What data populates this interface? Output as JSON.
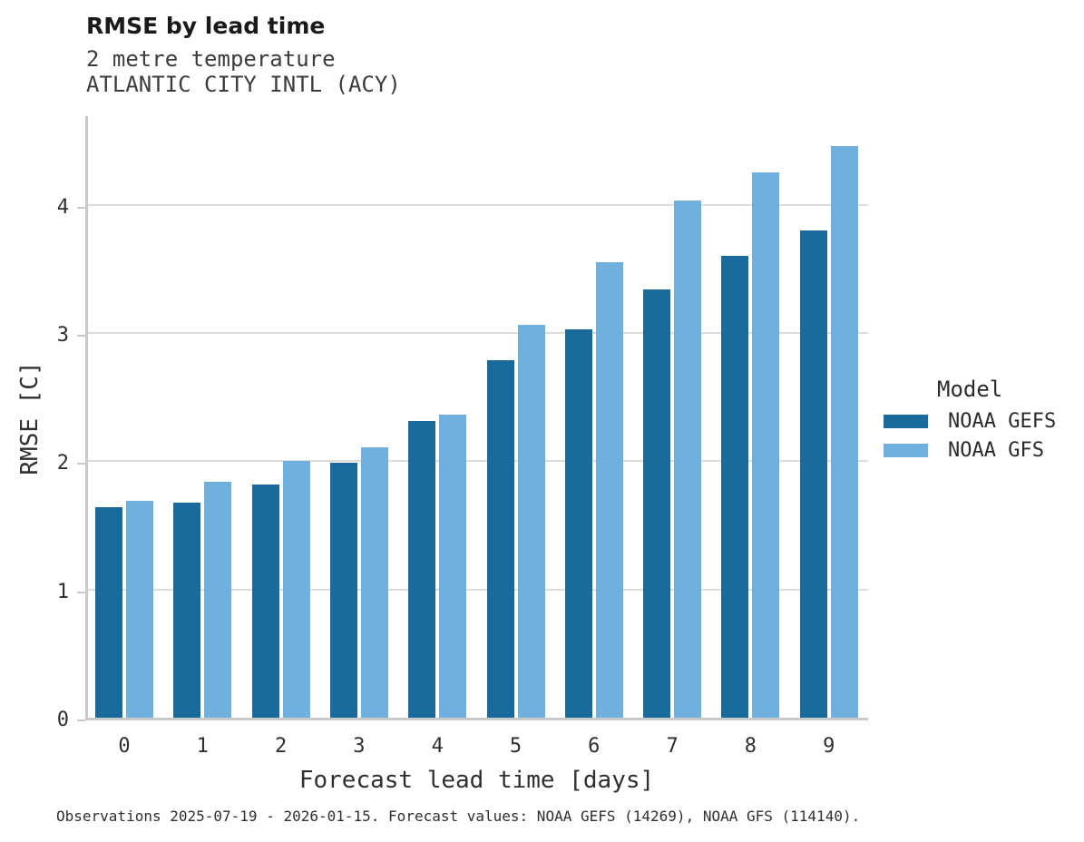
{
  "header": {
    "title": "RMSE by lead time",
    "subtitle_line1": "2 metre temperature",
    "subtitle_line2": "ATLANTIC CITY INTL (ACY)"
  },
  "chart_data": {
    "type": "bar",
    "title": "RMSE by lead time",
    "subtitle": [
      "2 metre temperature",
      "ATLANTIC CITY INTL (ACY)"
    ],
    "categories": [
      "0",
      "1",
      "2",
      "3",
      "4",
      "5",
      "6",
      "7",
      "8",
      "9"
    ],
    "series": [
      {
        "name": "NOAA GEFS",
        "color": "#196B9D",
        "values": [
          1.64,
          1.68,
          1.82,
          1.99,
          2.31,
          2.79,
          3.03,
          3.34,
          3.6,
          3.8
        ]
      },
      {
        "name": "NOAA GFS",
        "color": "#6FB1DC",
        "values": [
          1.69,
          1.84,
          2.0,
          2.11,
          2.36,
          3.06,
          3.55,
          4.03,
          4.25,
          4.46
        ]
      }
    ],
    "xlabel": "Forecast lead time [days]",
    "ylabel": "RMSE [C]",
    "ylim": [
      0,
      4.69
    ],
    "yticks": [
      0,
      1,
      2,
      3,
      4
    ],
    "grid": "horizontal",
    "legend_title": "Model",
    "legend_position": "right",
    "grid_color": "#dcdcdc",
    "axis_color": "#c9c9c9"
  },
  "legend": {
    "title": "Model",
    "items": [
      {
        "label": "NOAA GEFS",
        "color": "#196B9D"
      },
      {
        "label": "NOAA GFS",
        "color": "#6FB1DC"
      }
    ]
  },
  "caption": "Observations 2025-07-19 - 2026-01-15. Forecast values: NOAA GEFS (14269), NOAA GFS (114140)."
}
